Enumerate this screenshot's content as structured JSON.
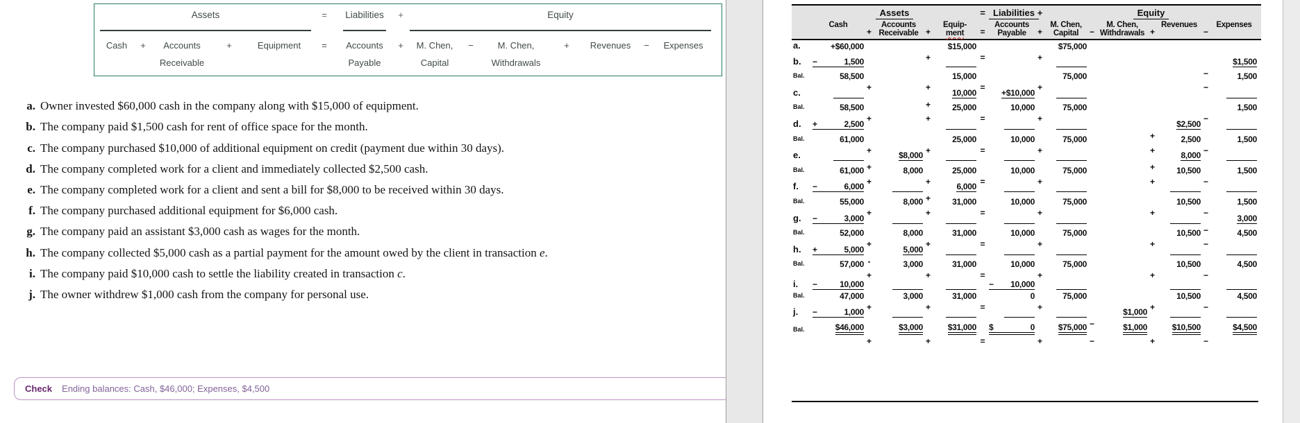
{
  "left_panel": {
    "equation_box": {
      "top": {
        "assets": "Assets",
        "eq": "=",
        "liabilities": "Liabilities",
        "plus": "+",
        "equity": "Equity"
      },
      "terms": [
        {
          "l1": "Cash",
          "l2": ""
        },
        {
          "l1": "Accounts",
          "l2": "Receivable"
        },
        {
          "l1": "Equipment",
          "l2": ""
        },
        {
          "l1": "Accounts",
          "l2": "Payable"
        },
        {
          "l1": "M. Chen,",
          "l2": "Capital"
        },
        {
          "l1": "M. Chen,",
          "l2": "Withdrawals"
        },
        {
          "l1": "Revenues",
          "l2": ""
        },
        {
          "l1": "Expenses",
          "l2": ""
        }
      ],
      "ops": [
        "+",
        "+",
        "=",
        "+",
        "−",
        "+",
        "−"
      ]
    },
    "transactions": [
      {
        "label": "a.",
        "text": "Owner invested $60,000 cash in the company along with $15,000 of equipment."
      },
      {
        "label": "b.",
        "text": "The company paid $1,500 cash for rent of office space for the month."
      },
      {
        "label": "c.",
        "text": "The company purchased $10,000 of additional equipment on credit (payment due within 30 days)."
      },
      {
        "label": "d.",
        "text": "The company completed work for a client and immediately collected $2,500 cash."
      },
      {
        "label": "e.",
        "text": "The company completed work for a client and sent a bill for $8,000 to be received within 30 days."
      },
      {
        "label": "f.",
        "text": "The company purchased additional equipment for $6,000 cash."
      },
      {
        "label": "g.",
        "text": "The company paid an assistant $3,000 cash as wages for the month."
      },
      {
        "label": "h.",
        "text": "The company collected $5,000 cash as a partial payment for the amount owed by the client in transaction ",
        "italic": "e",
        "tail": "."
      },
      {
        "label": "i.",
        "text": "The company paid $10,000 cash to settle the liability created in transaction ",
        "italic": "c",
        "tail": "."
      },
      {
        "label": "j.",
        "text": "The owner withdrew $1,000 cash from the company for personal use."
      }
    ],
    "check": {
      "label": "Check",
      "text": "Ending balances: Cash, $46,000; Expenses, $4,500"
    }
  },
  "worksheet": {
    "header": {
      "assets": "Assets",
      "eq": "=",
      "liabilities": "Liabilities",
      "plus": "+",
      "equity": "Equity",
      "columns": [
        {
          "l1": "Cash",
          "l2": ""
        },
        {
          "l1": "Accounts",
          "l2": "Receivable"
        },
        {
          "l1": "Equip-",
          "l2": "ment",
          "squiggle": true
        },
        {
          "l1": "Accounts",
          "l2": "Payable"
        },
        {
          "l1": "M. Chen,",
          "l2": "Capital"
        },
        {
          "l1": "M. Chen,",
          "l2": "Withdrawals"
        },
        {
          "l1": "Revenues",
          "l2": ""
        },
        {
          "l1": "Expenses",
          "l2": ""
        }
      ],
      "ops": [
        "+",
        "+",
        "=",
        "+",
        "−",
        "+",
        "−"
      ]
    },
    "rows": [
      {
        "label": "a.",
        "lt": "txn",
        "ops": [
          "",
          "+",
          "=",
          "+",
          "",
          "",
          ""
        ],
        "cells": [
          {
            "v": "+$60,000"
          },
          {},
          {
            "v": "$15,000"
          },
          {},
          {
            "v": "$75,000"
          },
          {},
          {},
          {}
        ]
      },
      {
        "label": "b.",
        "lt": "txn",
        "ops": [
          "",
          "",
          "",
          "",
          "",
          "",
          "−"
        ],
        "cells": [
          {
            "p": "−",
            "v": "1,500",
            "u": 1
          },
          {},
          {
            "u": 1
          },
          {},
          {
            "u": 1
          },
          {},
          {},
          {
            "v": "$1,500",
            "u": 1
          }
        ]
      },
      {
        "label": "Bal.",
        "lt": "bal",
        "ops": [
          "+",
          "+",
          "=",
          "+",
          "",
          "",
          "−"
        ],
        "cells": [
          {
            "v": "58,500"
          },
          {},
          {
            "v": "15,000"
          },
          {},
          {
            "v": "75,000"
          },
          {},
          {},
          {
            "v": "1,500"
          }
        ]
      },
      {
        "label": "c.",
        "lt": "txn",
        "ops": [
          "",
          "+",
          "",
          "",
          "",
          "",
          ""
        ],
        "cells": [
          {
            "u": 1
          },
          {},
          {
            "v": "10,000",
            "u": 1
          },
          {
            "v": "+$10,000",
            "u": 1
          },
          {
            "u": 1
          },
          {},
          {},
          {
            "u": 1
          }
        ]
      },
      {
        "label": "Bal.",
        "lt": "bal",
        "ops": [
          "+",
          "+",
          "=",
          "+",
          "",
          "",
          "−"
        ],
        "cells": [
          {
            "v": "58,500"
          },
          {},
          {
            "v": "25,000"
          },
          {
            "v": "10,000"
          },
          {
            "v": "75,000"
          },
          {},
          {},
          {
            "v": "1,500"
          }
        ]
      },
      {
        "label": "d.",
        "lt": "txn",
        "ops": [
          "",
          "",
          "",
          "",
          "",
          "+",
          ""
        ],
        "cells": [
          {
            "p": "+",
            "v": "2,500",
            "u": 1
          },
          {},
          {
            "u": 1
          },
          {
            "u": 1
          },
          {
            "u": 1
          },
          {},
          {
            "v": "$2,500",
            "u": 1
          },
          {
            "u": 1
          }
        ]
      },
      {
        "label": "Bal.",
        "lt": "bal",
        "ops": [
          "+",
          "+",
          "=",
          "+",
          "",
          "+",
          "−"
        ],
        "cells": [
          {
            "v": "61,000"
          },
          {},
          {
            "v": "25,000"
          },
          {
            "v": "10,000"
          },
          {
            "v": "75,000"
          },
          {},
          {
            "v": "2,500"
          },
          {
            "v": "1,500"
          }
        ]
      },
      {
        "label": "e.",
        "lt": "txn",
        "ops": [
          "+",
          "",
          "",
          "",
          "",
          "+",
          ""
        ],
        "cells": [
          {
            "u": 1
          },
          {
            "v": "$8,000",
            "u": 1
          },
          {
            "u": 1
          },
          {
            "u": 1
          },
          {
            "u": 1
          },
          {},
          {
            "v": "8,000",
            "u": 1
          },
          {
            "u": 1
          }
        ]
      },
      {
        "label": "Bal.",
        "lt": "bal",
        "ops": [
          "+",
          "+",
          "=",
          "+",
          "",
          "+",
          "−"
        ],
        "cells": [
          {
            "v": "61,000"
          },
          {
            "v": "8,000"
          },
          {
            "v": "25,000"
          },
          {
            "v": "10,000"
          },
          {
            "v": "75,000"
          },
          {},
          {
            "v": "10,500"
          },
          {
            "v": "1,500"
          }
        ]
      },
      {
        "label": "f.",
        "lt": "txn",
        "ops": [
          "",
          "+",
          "",
          "",
          "",
          "",
          ""
        ],
        "cells": [
          {
            "p": "−",
            "v": "6,000",
            "u": 1
          },
          {
            "u": 1
          },
          {
            "v": "6,000",
            "u": 1
          },
          {
            "u": 1
          },
          {
            "u": 1
          },
          {},
          {
            "u": 1
          },
          {
            "u": 1
          }
        ]
      },
      {
        "label": "Bal.",
        "lt": "bal",
        "ops": [
          "+",
          "+",
          "=",
          "+",
          "",
          "+",
          "−"
        ],
        "cells": [
          {
            "v": "55,000"
          },
          {
            "v": "8,000"
          },
          {
            "v": "31,000"
          },
          {
            "v": "10,000"
          },
          {
            "v": "75,000"
          },
          {},
          {
            "v": "10,500"
          },
          {
            "v": "1,500"
          }
        ]
      },
      {
        "label": "g.",
        "lt": "txn",
        "ops": [
          "",
          "",
          "",
          "",
          "",
          "",
          "−"
        ],
        "cells": [
          {
            "p": "−",
            "v": "3,000",
            "u": 1
          },
          {
            "u": 1
          },
          {
            "u": 1
          },
          {
            "u": 1
          },
          {
            "u": 1
          },
          {},
          {
            "u": 1
          },
          {
            "v": "3,000",
            "u": 1
          }
        ]
      },
      {
        "label": "Bal.",
        "lt": "bal",
        "ops": [
          "+",
          "+",
          "=",
          "+",
          "",
          "+",
          "−"
        ],
        "cells": [
          {
            "v": "52,000"
          },
          {
            "v": "8,000"
          },
          {
            "v": "31,000"
          },
          {
            "v": "10,000"
          },
          {
            "v": "75,000"
          },
          {},
          {
            "v": "10,500"
          },
          {
            "v": "4,500"
          }
        ]
      },
      {
        "label": "h.",
        "lt": "txn",
        "ops": [
          "-",
          "",
          "",
          "",
          "",
          "",
          ""
        ],
        "cells": [
          {
            "p": "+",
            "v": "5,000",
            "u": 1
          },
          {
            "v": "5,000",
            "u": 1
          },
          {
            "u": 1
          },
          {
            "u": 1
          },
          {
            "u": 1
          },
          {},
          {
            "u": 1
          },
          {
            "u": 1
          }
        ]
      },
      {
        "label": "Bal.",
        "lt": "bal",
        "ops": [
          "+",
          "+",
          "=",
          "+",
          "",
          "+",
          "−"
        ],
        "cells": [
          {
            "v": "57,000"
          },
          {
            "v": "3,000"
          },
          {
            "v": "31,000"
          },
          {
            "v": "10,000"
          },
          {
            "v": "75,000"
          },
          {},
          {
            "v": "10,500"
          },
          {
            "v": "4,500"
          }
        ]
      },
      {
        "label": "i.",
        "lt": "txn",
        "ops": [
          "",
          "",
          "",
          "",
          "",
          "",
          ""
        ],
        "cells": [
          {
            "p": "−",
            "v": "10,000",
            "u": 1
          },
          {
            "u": 1
          },
          {
            "u": 1
          },
          {
            "p": "−",
            "v": "10,000",
            "u": 1
          },
          {
            "u": 1
          },
          {},
          {
            "u": 1
          },
          {
            "u": 1
          }
        ]
      },
      {
        "label": "Bal.",
        "lt": "bal",
        "ops": [
          "+",
          "+",
          "=",
          "+",
          "",
          "+",
          "−"
        ],
        "cells": [
          {
            "v": "47,000"
          },
          {
            "v": "3,000"
          },
          {
            "v": "31,000"
          },
          {
            "v": "0"
          },
          {
            "v": "75,000"
          },
          {},
          {
            "v": "10,500"
          },
          {
            "v": "4,500"
          }
        ]
      },
      {
        "label": "j.",
        "lt": "txn",
        "ops": [
          "",
          "",
          "",
          "",
          "−",
          "",
          ""
        ],
        "cells": [
          {
            "p": "−",
            "v": "1,000",
            "u": 1
          },
          {
            "u": 1
          },
          {
            "u": 1
          },
          {
            "u": 1
          },
          {
            "u": 1
          },
          {
            "v": "$1,000",
            "u": 1
          },
          {
            "u": 1
          },
          {
            "u": 1
          }
        ]
      },
      {
        "label": "Bal.",
        "lt": "bal",
        "ops": [
          "+",
          "+",
          "=",
          "+",
          "−",
          "+",
          "−"
        ],
        "cells": [
          {
            "v": "$46,000",
            "d": 1
          },
          {
            "v": "$3,000",
            "d": 1
          },
          {
            "v": "$31,000",
            "d": 1
          },
          {
            "p": "$",
            "v": "0",
            "d": 1
          },
          {
            "v": "$75,000",
            "d": 1
          },
          {
            "v": "$1,000",
            "d": 1
          },
          {
            "v": "$10,500",
            "d": 1
          },
          {
            "v": "$4,500",
            "d": 1
          }
        ]
      }
    ]
  }
}
